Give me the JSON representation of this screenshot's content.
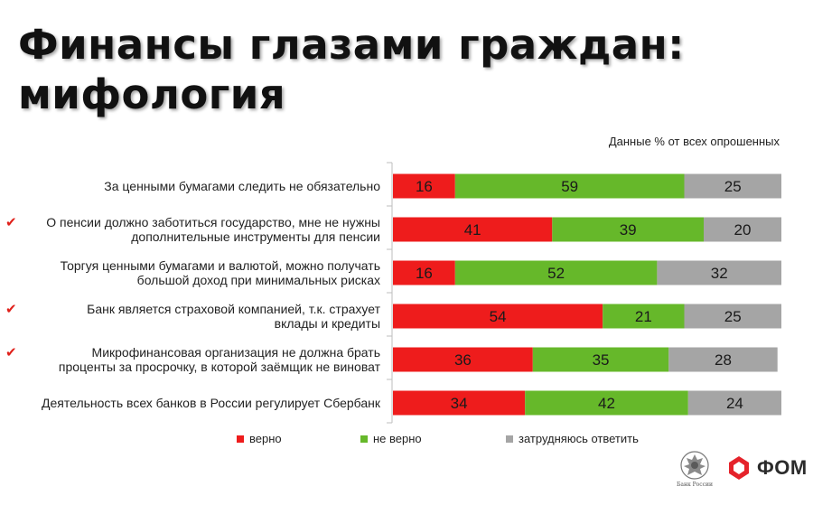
{
  "title_line1": "Финансы глазами граждан:",
  "title_line2": "мифология",
  "note": "Данные % от всех опрошенных",
  "chart_data": {
    "type": "bar",
    "orientation": "horizontal",
    "stacked": true,
    "xlim": [
      0,
      100
    ],
    "categories": [
      {
        "label": [
          "За ценными бумагами следить не обязательно"
        ],
        "checked": false
      },
      {
        "label": [
          "О пенсии должно заботиться государство, мне не нужны",
          "дополнительные инструменты для пенсии"
        ],
        "checked": true
      },
      {
        "label": [
          "Торгуя ценными бумагами и валютой, можно получать",
          "большой доход при минимальных рисках"
        ],
        "checked": false
      },
      {
        "label": [
          "Банк является страховой компанией, т.к. страхует",
          "вклады и кредиты"
        ],
        "checked": true
      },
      {
        "label": [
          "Микрофинансовая организация не должна брать",
          "проценты за просрочку, в которой заёмщик не виноват"
        ],
        "checked": true
      },
      {
        "label": [
          "Деятельность всех банков в России регулирует Сбербанк"
        ],
        "checked": false
      }
    ],
    "series": [
      {
        "name": "верно",
        "color": "#ee1c1c",
        "values": [
          16,
          41,
          16,
          54,
          36,
          34
        ]
      },
      {
        "name": "не верно",
        "color": "#66b82a",
        "values": [
          59,
          39,
          52,
          21,
          35,
          42
        ]
      },
      {
        "name": "затрудняюсь ответить",
        "color": "#a5a5a5",
        "values": [
          25,
          20,
          32,
          25,
          28,
          24
        ]
      }
    ],
    "legend_position": "bottom"
  },
  "checkmark": "✔",
  "logos": {
    "cbr_caption": "Банк России",
    "fom_text": "ФОМ"
  }
}
